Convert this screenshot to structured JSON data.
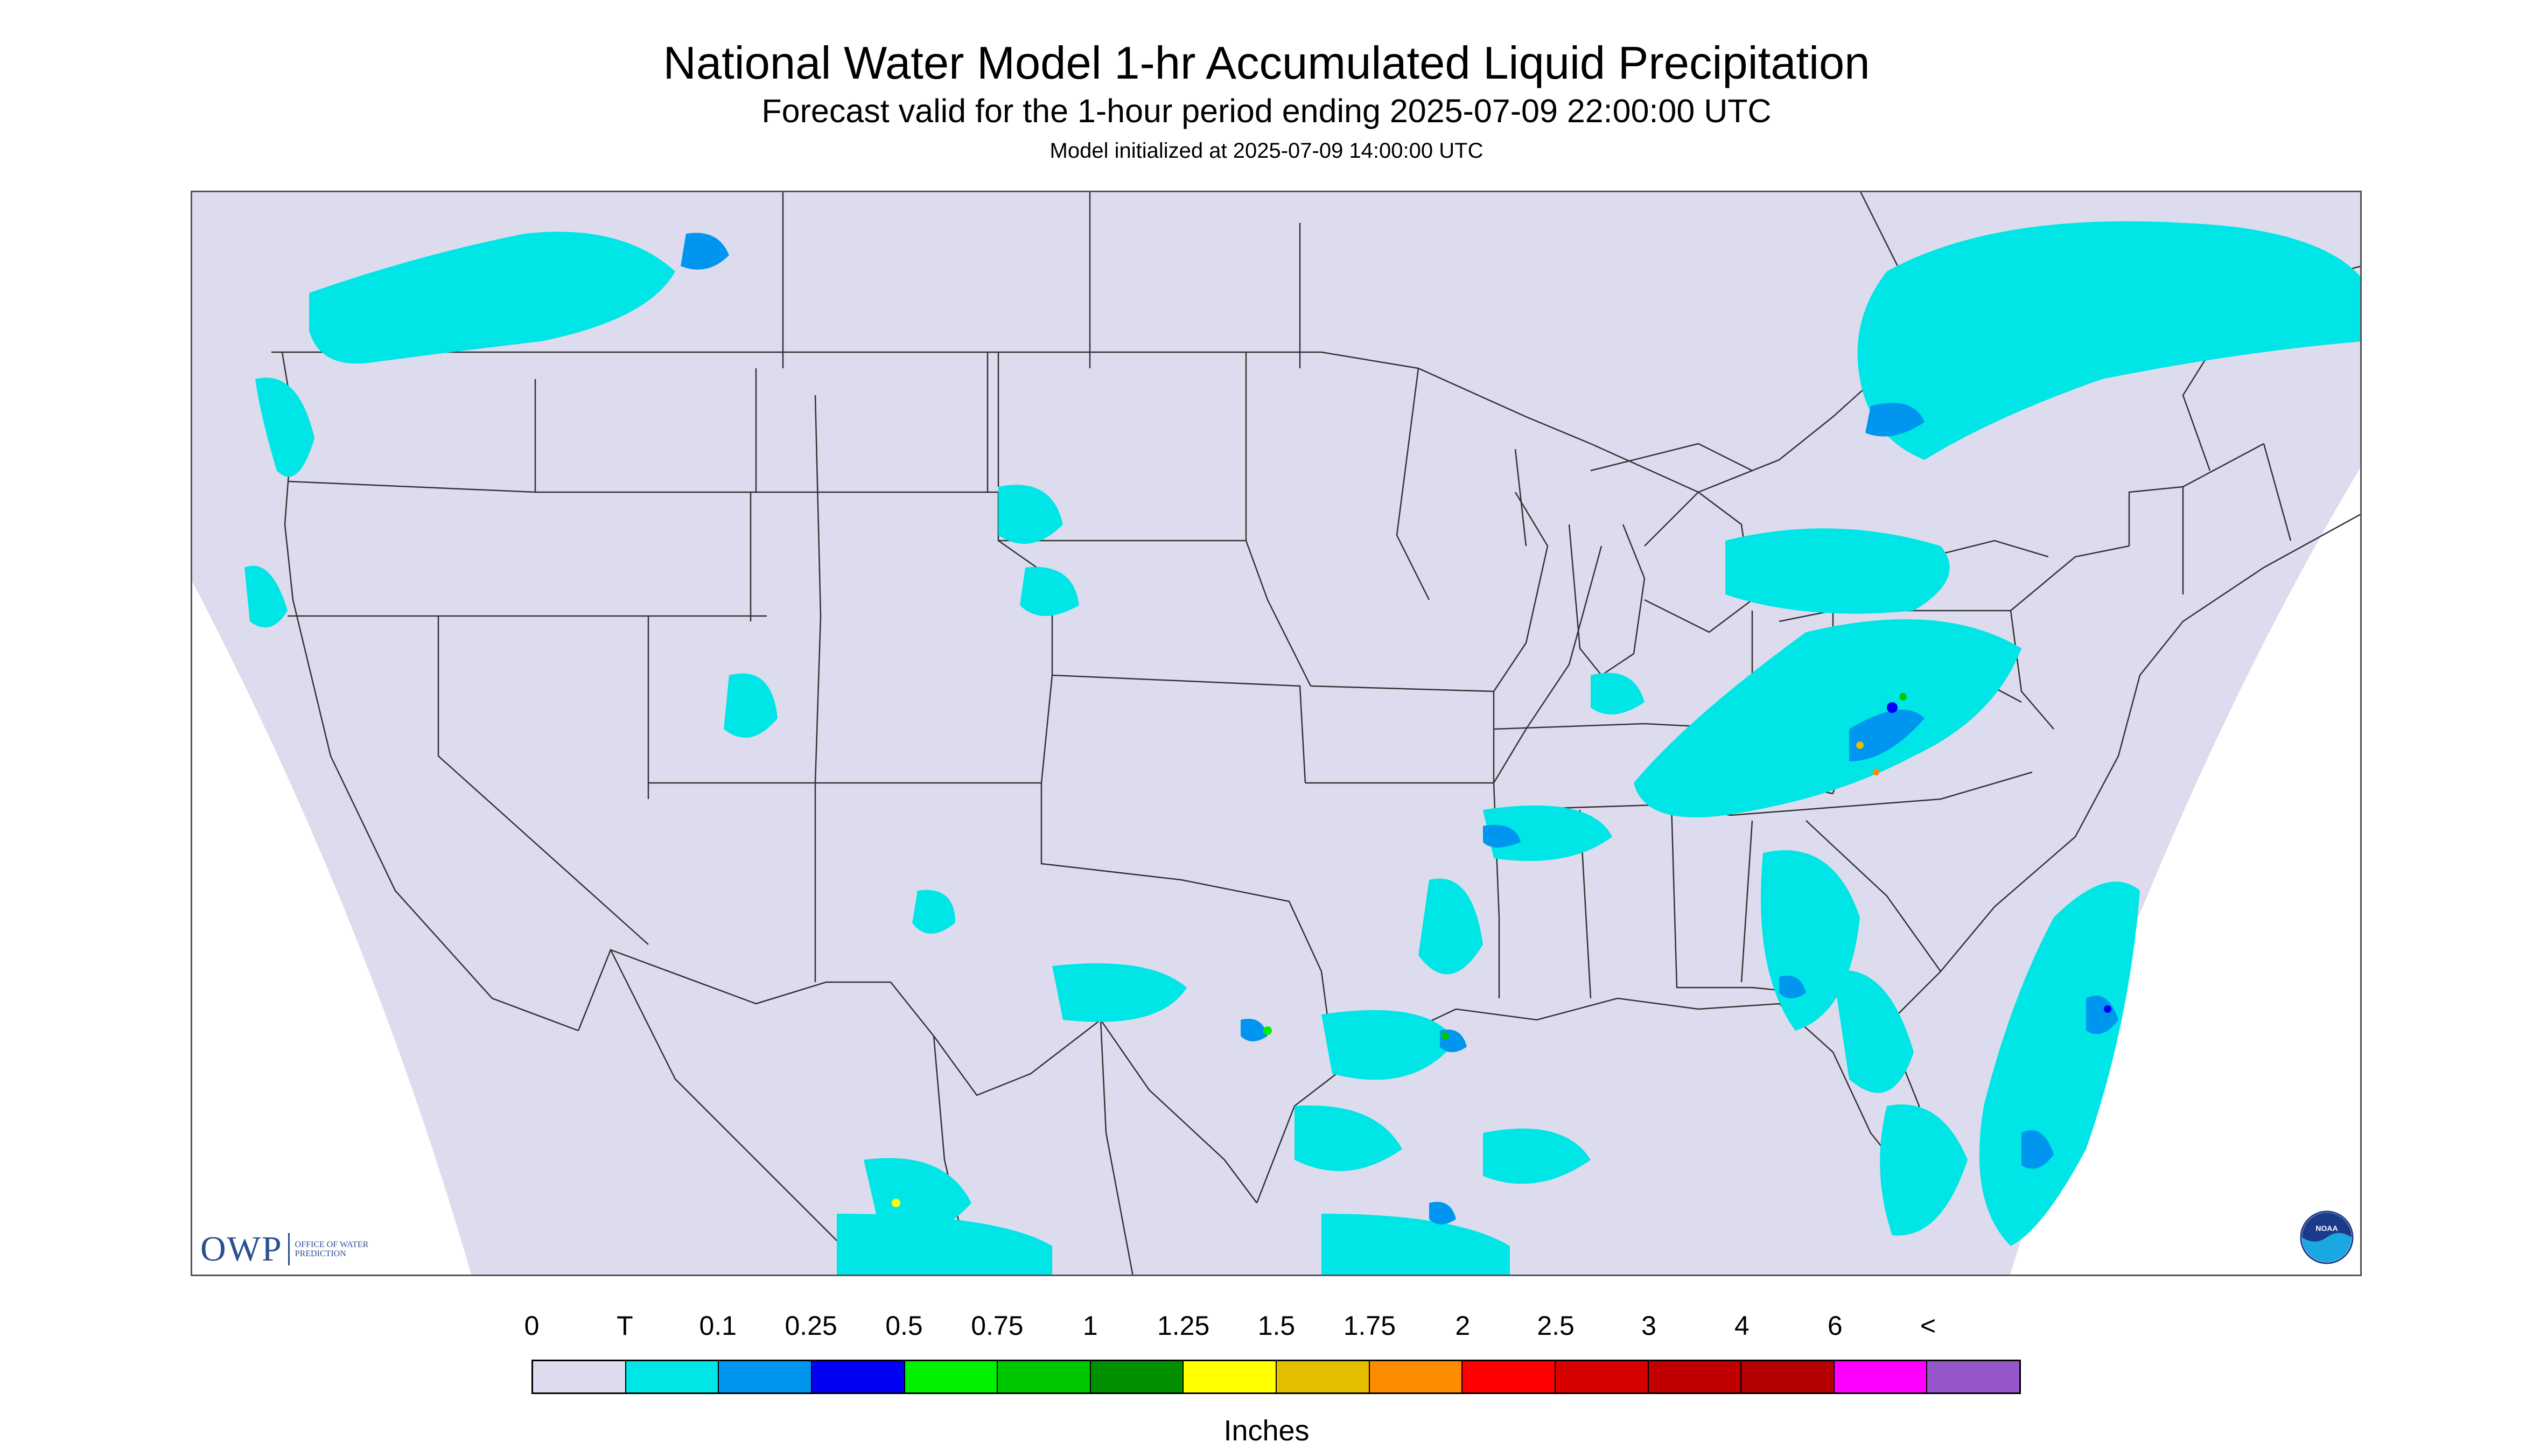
{
  "header": {
    "title": "National Water Model 1-hr Accumulated Liquid Precipitation",
    "subtitle": "Forecast valid for the 1-hour period ending 2025-07-09 22:00:00 UTC",
    "init": "Model initialized at 2025-07-09 14:00:00 UTC"
  },
  "legend": {
    "labels": [
      "0",
      "T",
      "0.1",
      "0.25",
      "0.5",
      "0.75",
      "1",
      "1.25",
      "1.5",
      "1.75",
      "2",
      "2.5",
      "3",
      "4",
      "6",
      "<"
    ],
    "colors": [
      "#dcdcee",
      "#00e5e5",
      "#0096f0",
      "#0000f5",
      "#00f000",
      "#00c800",
      "#009000",
      "#ffff00",
      "#e6be00",
      "#ff8c00",
      "#ff0000",
      "#d70000",
      "#c00000",
      "#b40000",
      "#ff00ff",
      "#9655c8"
    ],
    "units": "Inches"
  },
  "map": {
    "background_color": "#dcdcee",
    "outside_color": "#ffffff",
    "boundary_color": "#333333"
  },
  "logos": {
    "owp_mark": "OWP",
    "owp_text": "OFFICE OF WATER PREDICTION",
    "noaa_text": "NOAA"
  }
}
